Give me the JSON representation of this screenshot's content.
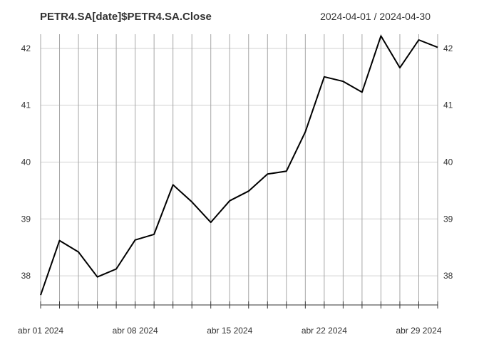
{
  "chart_data": {
    "type": "line",
    "title": "PETR4.SA[date]$PETR4.SA.Close",
    "date_range": "2024-04-01 / 2024-04-30",
    "xlabel": "",
    "ylabel": "",
    "x": [
      "2024-04-01",
      "2024-04-02",
      "2024-04-03",
      "2024-04-04",
      "2024-04-05",
      "2024-04-08",
      "2024-04-09",
      "2024-04-10",
      "2024-04-11",
      "2024-04-12",
      "2024-04-15",
      "2024-04-16",
      "2024-04-17",
      "2024-04-18",
      "2024-04-19",
      "2024-04-22",
      "2024-04-23",
      "2024-04-24",
      "2024-04-25",
      "2024-04-26",
      "2024-04-29",
      "2024-04-30"
    ],
    "series": [
      {
        "values": [
          37.66,
          38.62,
          38.42,
          37.98,
          38.12,
          38.63,
          38.73,
          39.6,
          39.3,
          38.94,
          39.32,
          39.49,
          39.79,
          39.84,
          40.53,
          41.5,
          41.42,
          41.23,
          42.22,
          41.66,
          42.15,
          42.02
        ]
      }
    ],
    "ylim": [
      37.55,
      42.25
    ],
    "y_ticks": [
      38,
      39,
      40,
      41,
      42
    ],
    "y_tick_labels": [
      "38",
      "39",
      "40",
      "41",
      "42"
    ],
    "x_tick_labels": [
      {
        "date": "2024-04-01",
        "label": "abr 01 2024"
      },
      {
        "date": "2024-04-08",
        "label": "abr 08 2024"
      },
      {
        "date": "2024-04-15",
        "label": "abr 15 2024"
      },
      {
        "date": "2024-04-22",
        "label": "abr 22 2024"
      },
      {
        "date": "2024-04-29",
        "label": "abr 29 2024"
      }
    ],
    "grid": true,
    "colors": {
      "line": "#000000",
      "grid": "#a6a6a6",
      "text": "#333333"
    }
  }
}
